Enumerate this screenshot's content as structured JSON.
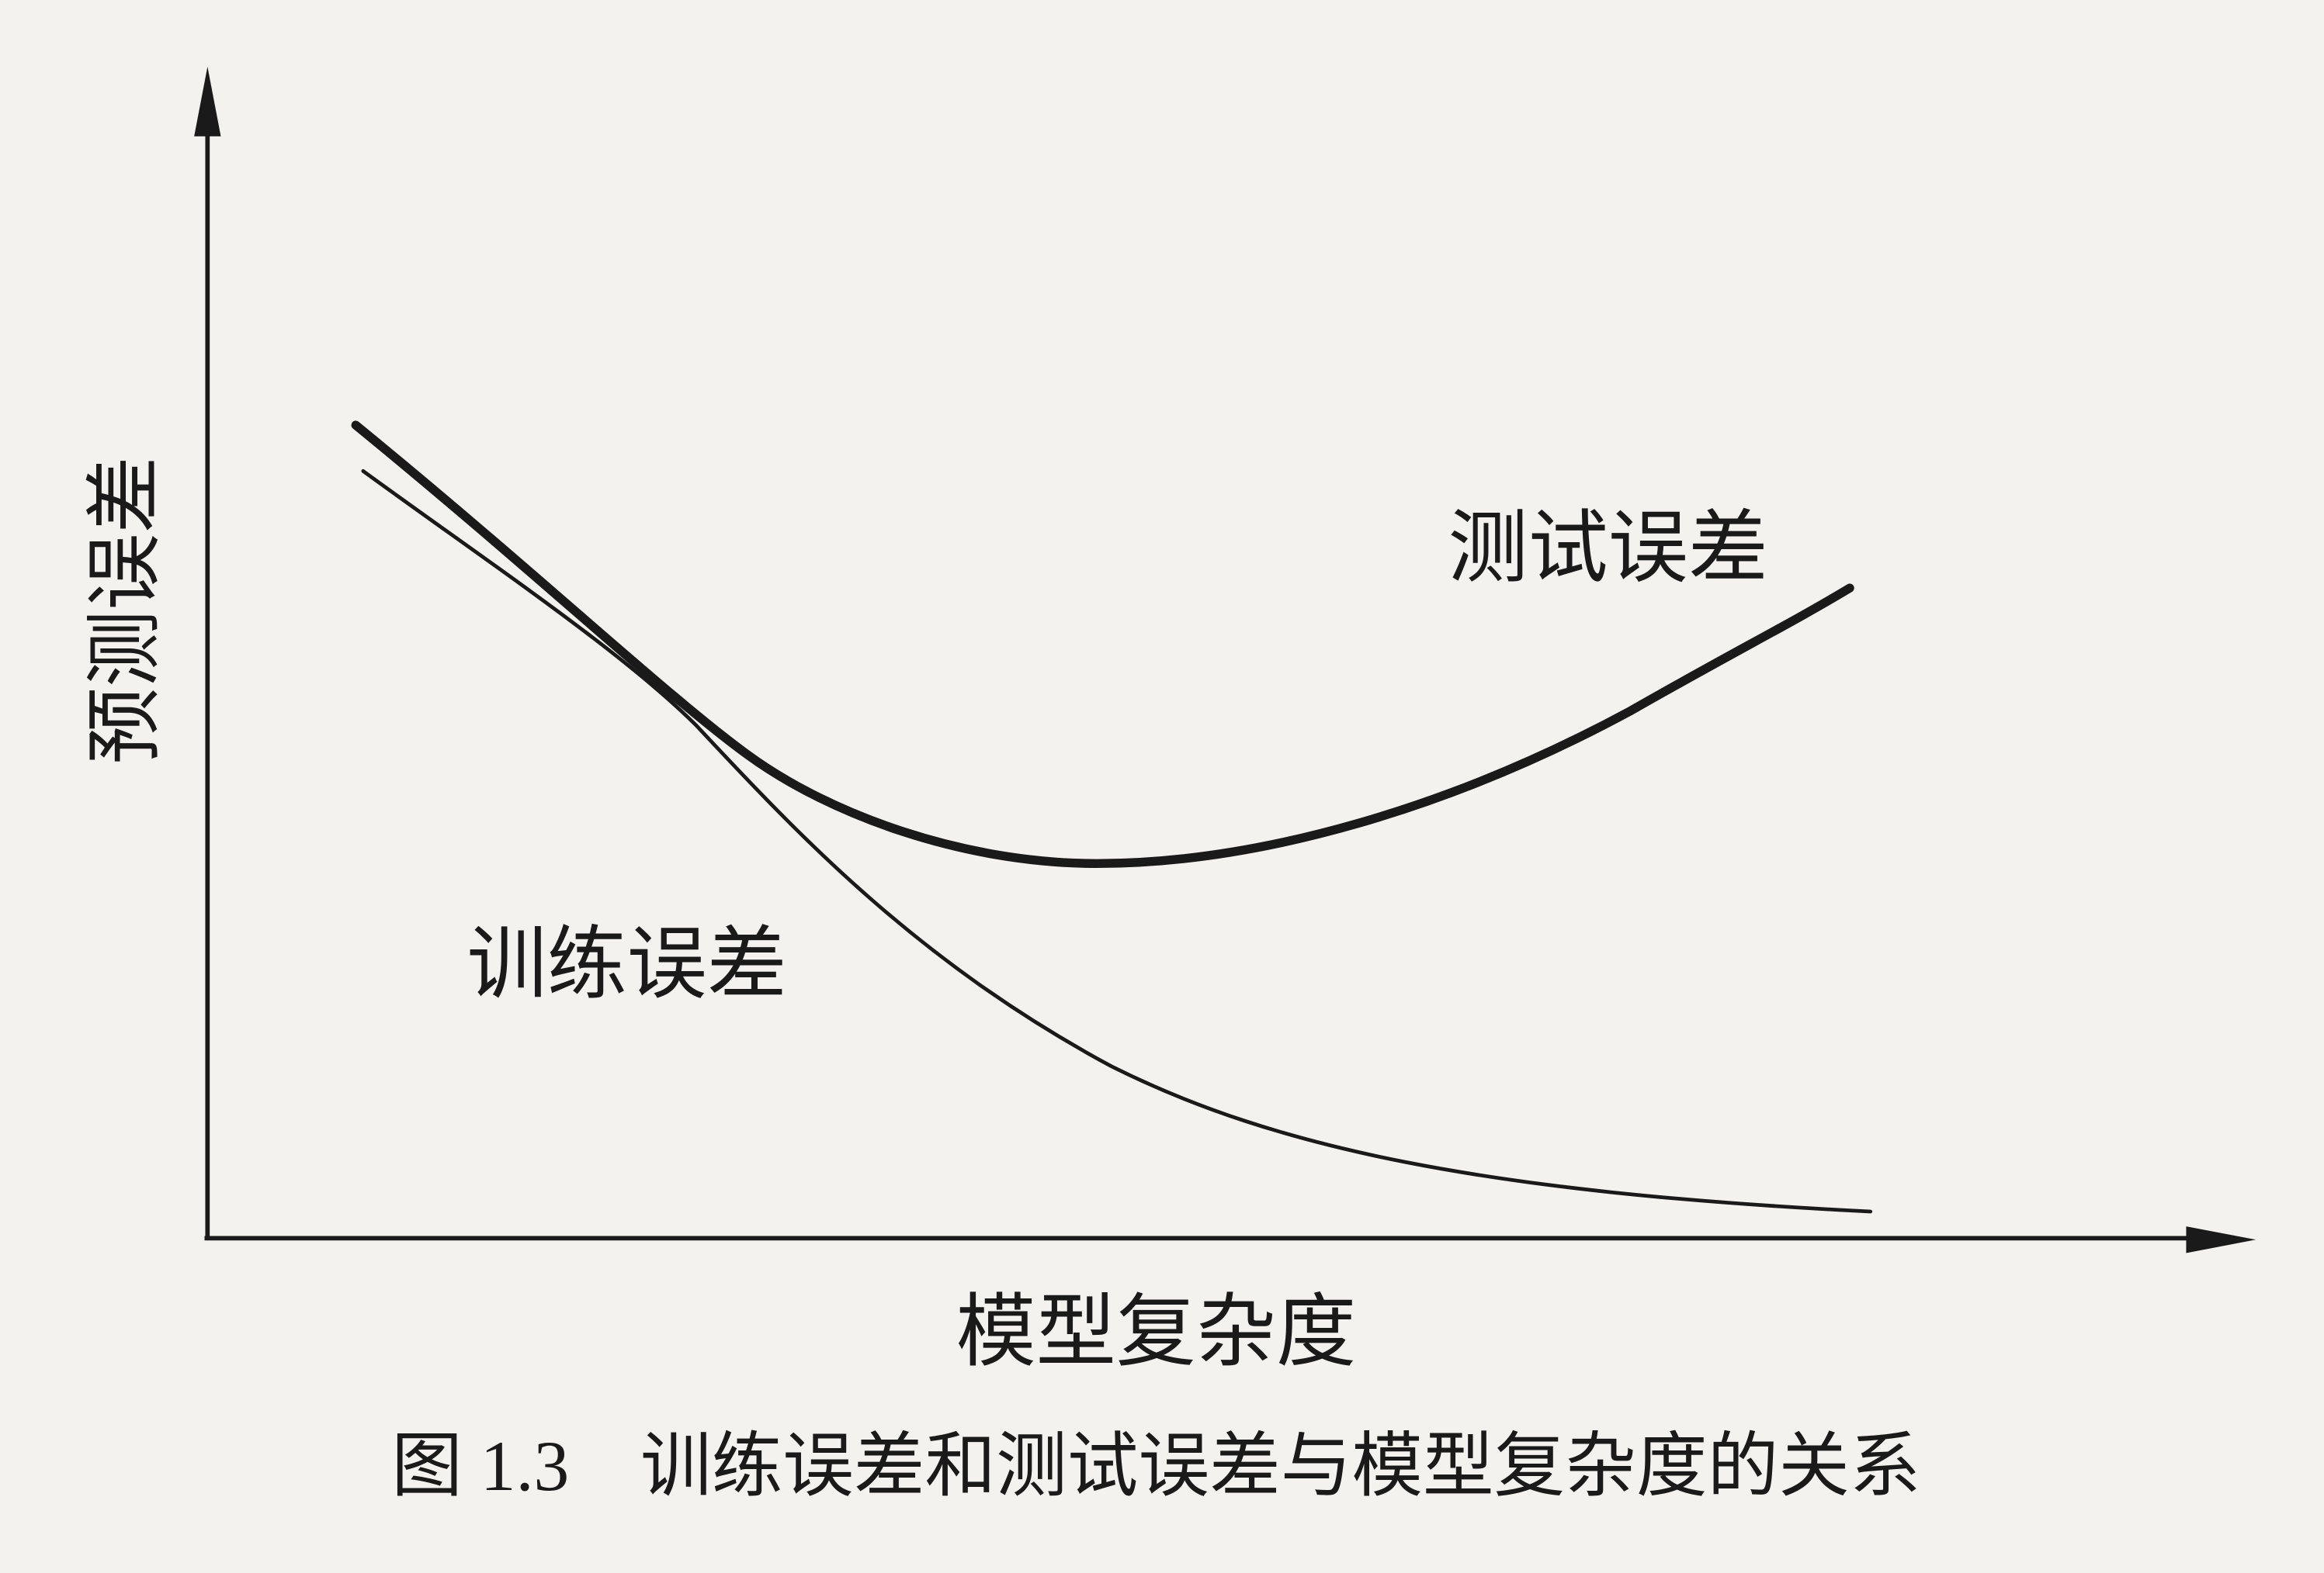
{
  "figure": {
    "y_axis_label": "预测误差",
    "x_axis_label": "模型复杂度",
    "curves": [
      {
        "label": "测试误差"
      },
      {
        "label": "训练误差"
      }
    ],
    "caption": "图 1.3　训练误差和测试误差与模型复杂度的关系"
  }
}
